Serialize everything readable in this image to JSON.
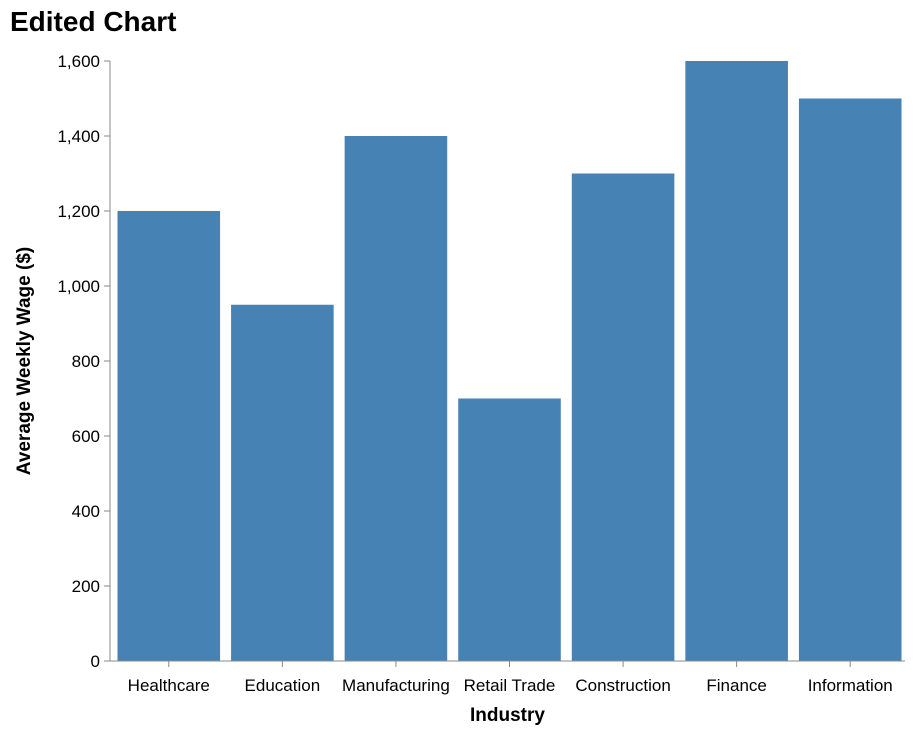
{
  "chart_data": {
    "type": "bar",
    "title": "Edited Chart",
    "xlabel": "Industry",
    "ylabel": "Average Weekly Wage ($)",
    "categories": [
      "Healthcare",
      "Education",
      "Manufacturing",
      "Retail Trade",
      "Construction",
      "Finance",
      "Information"
    ],
    "values": [
      1200,
      950,
      1400,
      700,
      1300,
      1600,
      1500
    ],
    "ylim": [
      0,
      1600
    ],
    "yticks": [
      0,
      200,
      400,
      600,
      800,
      1000,
      1200,
      1400,
      1600
    ],
    "ytick_labels": [
      "0",
      "200",
      "400",
      "600",
      "800",
      "1,000",
      "1,200",
      "1,400",
      "1,600"
    ],
    "grid": false,
    "bar_color": "#4682b4",
    "axis_color": "#888888"
  }
}
